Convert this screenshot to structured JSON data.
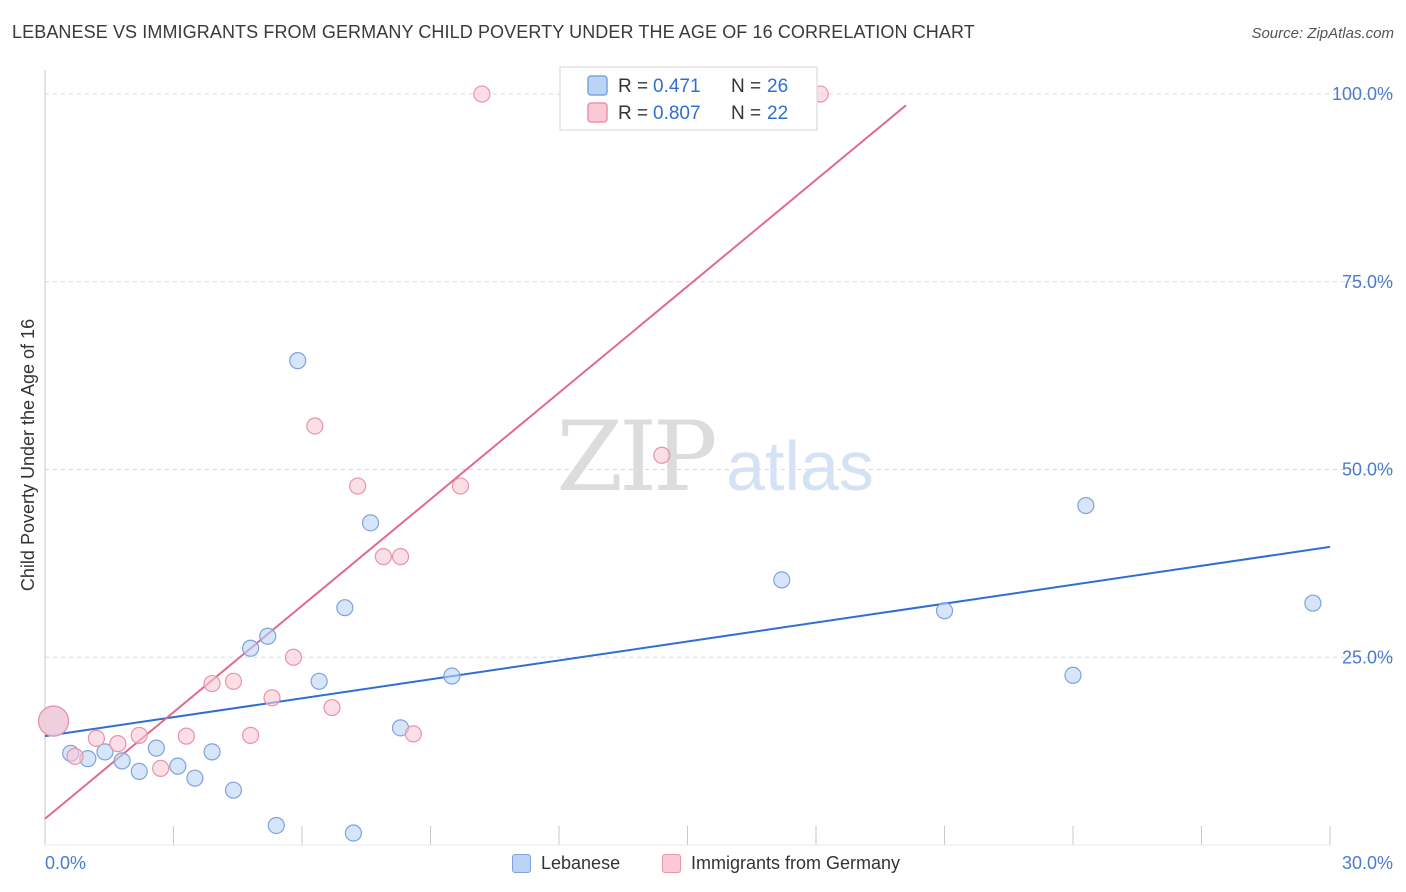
{
  "header": {
    "title": "LEBANESE VS IMMIGRANTS FROM GERMANY CHILD POVERTY UNDER THE AGE OF 16 CORRELATION CHART",
    "source": "Source: ZipAtlas.com"
  },
  "watermark": {
    "zip": "ZIP",
    "atlas": "atlas"
  },
  "colors": {
    "blue_fill": "#bcd3f5",
    "blue_stroke": "#7da3de",
    "blue_line": "#2f6fcf",
    "pink_fill": "#f9c9d6",
    "pink_stroke": "#ea93ab",
    "pink_line": "#e06a90",
    "tick_label": "#4a7bd0",
    "grid": "#d8d8d8"
  },
  "legend_top": {
    "rows": [
      {
        "r_label": "R = ",
        "r_value": "0.471",
        "n_label": "N = ",
        "n_value": "26",
        "swatch": "blue"
      },
      {
        "r_label": "R = ",
        "r_value": "0.807",
        "n_label": "N = ",
        "n_value": "22",
        "swatch": "pink"
      }
    ]
  },
  "legend_bottom": {
    "items": [
      "Lebanese",
      "Immigrants from Germany"
    ]
  },
  "chart_data": {
    "type": "scatter",
    "title": "LEBANESE VS IMMIGRANTS FROM GERMANY CHILD POVERTY UNDER THE AGE OF 16 CORRELATION CHART",
    "xlabel": "",
    "ylabel": "Child Poverty Under the Age of 16",
    "xlim": [
      0,
      30
    ],
    "ylim": [
      0,
      104
    ],
    "x_tick_labels": [
      "0.0%",
      "30.0%"
    ],
    "y_ticks": [
      25,
      50,
      75,
      100
    ],
    "y_tick_labels": [
      "25.0%",
      "50.0%",
      "75.0%",
      "100.0%"
    ],
    "grid": true,
    "legend_position": "top-center",
    "series": [
      {
        "name": "Lebanese",
        "color": "#bcd3f5",
        "points": [
          [
            0.2,
            16.5
          ],
          [
            0.6,
            12.2
          ],
          [
            1.0,
            11.5
          ],
          [
            1.4,
            12.4
          ],
          [
            1.8,
            11.2
          ],
          [
            2.2,
            9.8
          ],
          [
            2.6,
            12.9
          ],
          [
            3.1,
            10.5
          ],
          [
            3.5,
            8.9
          ],
          [
            3.9,
            12.4
          ],
          [
            4.4,
            7.3
          ],
          [
            4.8,
            26.2
          ],
          [
            5.2,
            27.8
          ],
          [
            5.4,
            2.6
          ],
          [
            5.9,
            64.5
          ],
          [
            6.4,
            21.8
          ],
          [
            7.0,
            31.6
          ],
          [
            7.2,
            1.6
          ],
          [
            7.6,
            42.9
          ],
          [
            8.3,
            15.6
          ],
          [
            9.5,
            22.5
          ],
          [
            17.2,
            35.3
          ],
          [
            21.0,
            31.2
          ],
          [
            24.0,
            22.6
          ],
          [
            24.3,
            45.2
          ],
          [
            29.6,
            32.2
          ]
        ],
        "trend": {
          "x": [
            0,
            30
          ],
          "y": [
            14.5,
            39.7
          ]
        }
      },
      {
        "name": "Immigrants from Germany",
        "color": "#f9c9d6",
        "points": [
          [
            0.2,
            16.5
          ],
          [
            0.7,
            11.8
          ],
          [
            1.2,
            14.2
          ],
          [
            1.7,
            13.5
          ],
          [
            2.2,
            14.6
          ],
          [
            2.7,
            10.2
          ],
          [
            3.3,
            14.5
          ],
          [
            3.9,
            21.5
          ],
          [
            4.4,
            21.8
          ],
          [
            4.8,
            14.6
          ],
          [
            5.3,
            19.6
          ],
          [
            5.8,
            25.0
          ],
          [
            6.3,
            55.8
          ],
          [
            6.7,
            18.3
          ],
          [
            7.3,
            47.8
          ],
          [
            7.9,
            38.4
          ],
          [
            8.3,
            38.4
          ],
          [
            8.6,
            14.8
          ],
          [
            9.7,
            47.8
          ],
          [
            10.2,
            100.0
          ],
          [
            14.4,
            51.9
          ],
          [
            18.1,
            100.0
          ]
        ],
        "trend": {
          "x": [
            0,
            20.1
          ],
          "y": [
            3.5,
            98.5
          ]
        }
      }
    ]
  }
}
